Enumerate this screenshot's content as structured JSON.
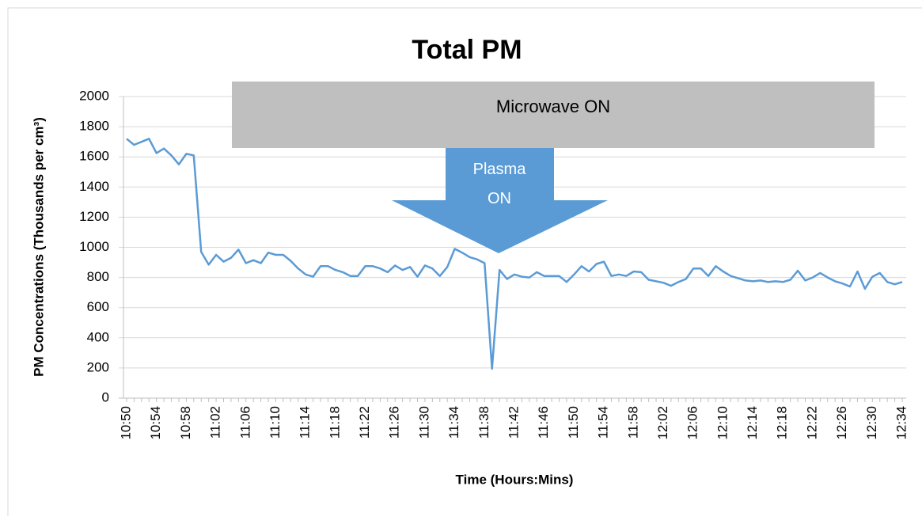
{
  "chart_data": {
    "type": "line",
    "title": "Total PM",
    "x_label": "Time (Hours:Mins)",
    "y_label": "PM Concentrations (Thousands per cm³)",
    "annotations": [
      "Microwave ON",
      "Plasma ON"
    ],
    "categories": [
      "10:50",
      null,
      null,
      null,
      "10:54",
      null,
      null,
      null,
      "10:58",
      null,
      null,
      null,
      "11:02",
      null,
      null,
      null,
      "11:06",
      null,
      null,
      null,
      "11:10",
      null,
      null,
      null,
      "11:14",
      null,
      null,
      null,
      "11:18",
      null,
      null,
      null,
      "11:22",
      null,
      null,
      null,
      "11:26",
      null,
      null,
      null,
      "11:30",
      null,
      null,
      null,
      "11:34",
      null,
      null,
      null,
      "11:38",
      null,
      null,
      null,
      "11:42",
      null,
      null,
      null,
      "11:46",
      null,
      null,
      null,
      "11:50",
      null,
      null,
      null,
      "11:54",
      null,
      null,
      null,
      "11:58",
      null,
      null,
      null,
      "12:02",
      null,
      null,
      null,
      "12:06",
      null,
      null,
      null,
      "12:10",
      null,
      null,
      null,
      "12:14",
      null,
      null,
      null,
      "12:18",
      null,
      null,
      null,
      "12:22",
      null,
      null,
      null,
      "12:26",
      null,
      null,
      null,
      "12:30",
      null,
      null,
      null,
      "12:34"
    ],
    "values": [
      1720,
      1680,
      1700,
      1720,
      1625,
      1655,
      1610,
      1550,
      1620,
      1610,
      970,
      885,
      950,
      905,
      930,
      985,
      895,
      915,
      895,
      965,
      950,
      950,
      910,
      860,
      820,
      805,
      875,
      875,
      850,
      835,
      810,
      810,
      875,
      875,
      860,
      835,
      880,
      850,
      870,
      805,
      880,
      860,
      810,
      870,
      990,
      965,
      935,
      920,
      895,
      195,
      850,
      790,
      820,
      805,
      800,
      835,
      810,
      810,
      810,
      770,
      820,
      875,
      840,
      890,
      905,
      810,
      820,
      810,
      840,
      835,
      785,
      775,
      765,
      745,
      770,
      790,
      860,
      860,
      810,
      875,
      840,
      810,
      795,
      780,
      775,
      780,
      770,
      775,
      770,
      785,
      845,
      780,
      800,
      830,
      800,
      775,
      760,
      740,
      840,
      725,
      805,
      830,
      770,
      755,
      770
    ],
    "color": "#5b9bd5",
    "ylim": [
      0,
      2000
    ],
    "yticks": [
      0,
      200,
      400,
      600,
      800,
      1000,
      1200,
      1400,
      1600,
      1800,
      2000
    ],
    "grid": true
  }
}
